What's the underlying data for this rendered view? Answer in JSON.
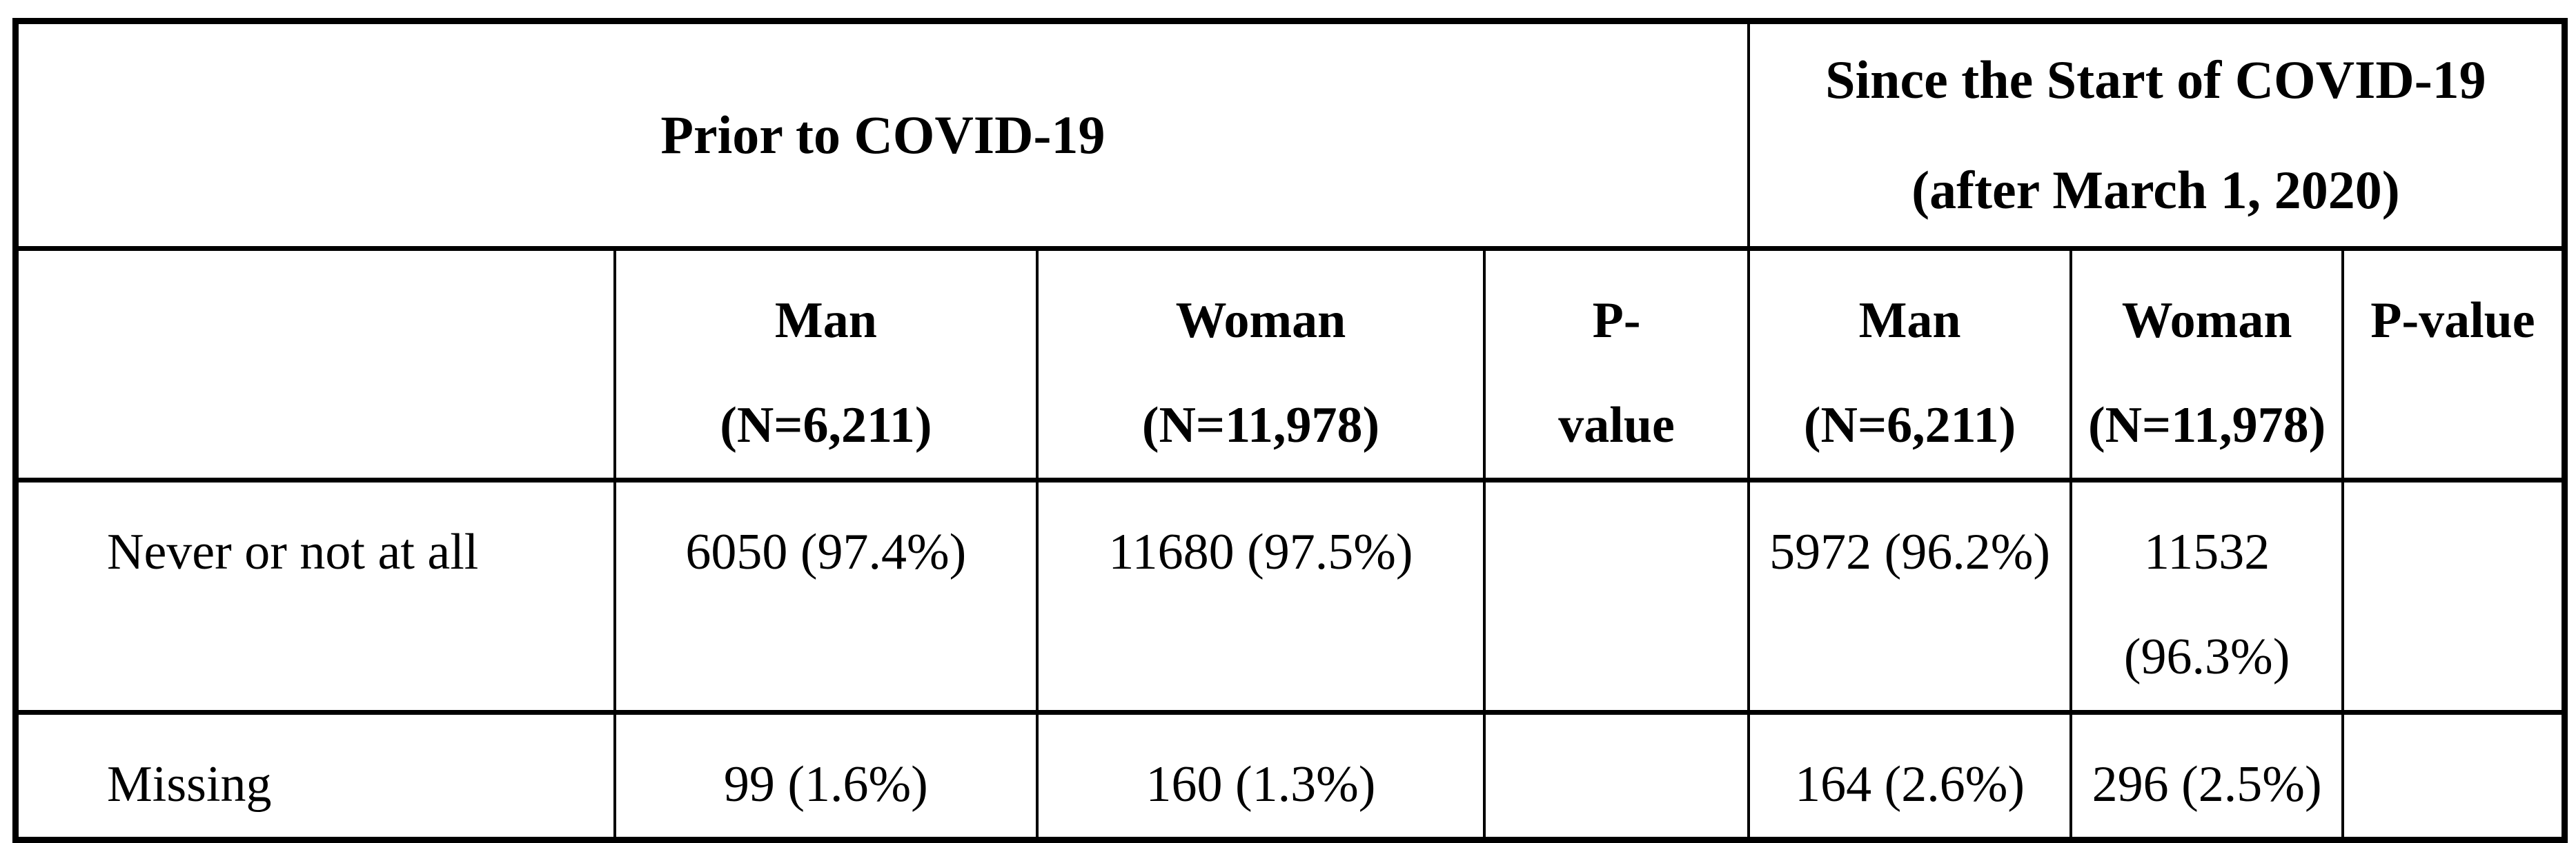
{
  "colors": {
    "background": "#ffffff",
    "border": "#000000",
    "text": "#000000"
  },
  "table": {
    "group_headers": {
      "prior": {
        "lines": [
          "Prior to COVID-19"
        ]
      },
      "since": {
        "lines": [
          "Since the Start of COVID-19",
          "(after March 1, 2020)"
        ]
      }
    },
    "column_headers": {
      "stub": [],
      "man_prior": [
        "Man",
        "(N=6,211)"
      ],
      "woman_prior": [
        "Woman",
        "(N=11,978)"
      ],
      "pvalue_prior": [
        "P-",
        "value"
      ],
      "man_since": [
        "Man",
        "(N=6,211)"
      ],
      "woman_since": [
        "Woman",
        "(N=11,978)"
      ],
      "pvalue_since": [
        "P-value"
      ]
    },
    "rows": [
      {
        "label": "Never or not at all",
        "man_prior": [
          "6050 (97.4%)"
        ],
        "woman_prior": [
          "11680 (97.5%)"
        ],
        "pvalue_prior": [],
        "man_since": [
          "5972 (96.2%)"
        ],
        "woman_since": [
          "11532",
          "(96.3%)"
        ],
        "pvalue_since": []
      },
      {
        "label": "Missing",
        "man_prior": [
          "99 (1.6%)"
        ],
        "woman_prior": [
          "160 (1.3%)"
        ],
        "pvalue_prior": [],
        "man_since": [
          "164 (2.6%)"
        ],
        "woman_since": [
          "296 (2.5%)"
        ],
        "pvalue_since": []
      }
    ]
  }
}
